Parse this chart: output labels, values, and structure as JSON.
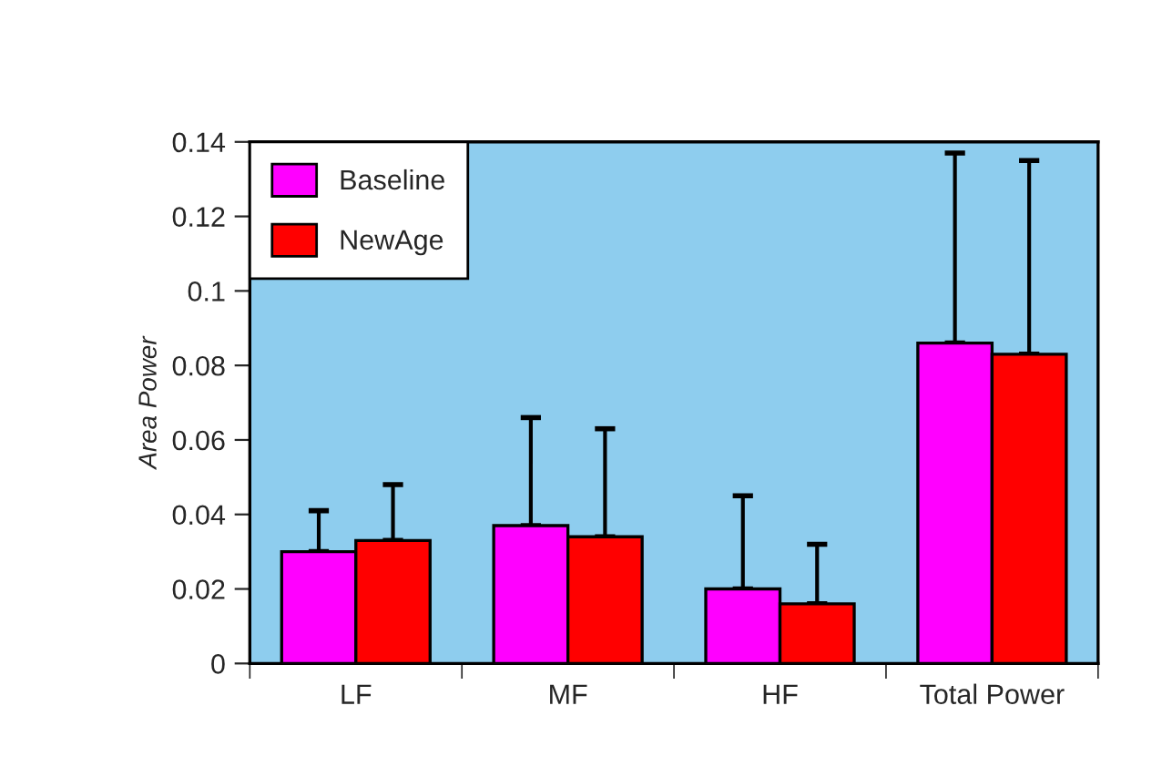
{
  "chart_data": {
    "type": "bar",
    "ylabel": "Area Power",
    "categories": [
      "LF",
      "MF",
      "HF",
      "Total Power"
    ],
    "series": [
      {
        "name": "Baseline",
        "color": "#ff00ff",
        "values": [
          0.03,
          0.037,
          0.02,
          0.086
        ],
        "errors": [
          [
            0.03,
            0.041
          ],
          [
            0.037,
            0.066
          ],
          [
            0.02,
            0.045
          ],
          [
            0.086,
            0.137
          ]
        ]
      },
      {
        "name": "NewAge",
        "color": "#ff0000",
        "values": [
          0.033,
          0.034,
          0.016,
          0.083
        ],
        "errors": [
          [
            0.033,
            0.048
          ],
          [
            0.034,
            0.063
          ],
          [
            0.016,
            0.032
          ],
          [
            0.083,
            0.135
          ]
        ]
      }
    ],
    "ylim": [
      0,
      0.14
    ],
    "yticks": [
      0,
      0.02,
      0.04,
      0.06,
      0.08,
      {
        "value": 0.1,
        "label": "0.1"
      },
      0.12,
      0.14
    ],
    "grid": false,
    "legend": "top left"
  }
}
